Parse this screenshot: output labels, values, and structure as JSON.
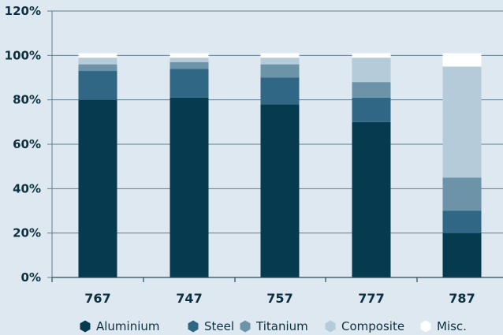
{
  "chart_data": {
    "type": "bar",
    "stacked": true,
    "categories": [
      "767",
      "747",
      "757",
      "777",
      "787"
    ],
    "series": [
      {
        "name": "Aluminium",
        "color": "#053a4f",
        "values": [
          80,
          81,
          78,
          70,
          20
        ]
      },
      {
        "name": "Steel",
        "color": "#2f6784",
        "values": [
          13,
          13,
          12,
          11,
          10
        ]
      },
      {
        "name": "Titanium",
        "color": "#6d93a8",
        "values": [
          3,
          3,
          6,
          7,
          15
        ]
      },
      {
        "name": "Composite",
        "color": "#b6cbda",
        "values": [
          3,
          2,
          3,
          11,
          50
        ]
      },
      {
        "name": "Misc.",
        "color": "#ffffff",
        "values": [
          2,
          2,
          2,
          2,
          6
        ]
      }
    ],
    "y_ticks": [
      "0%",
      "20%",
      "40%",
      "60%",
      "80%",
      "100%",
      "120%"
    ],
    "ylim": [
      0,
      120
    ],
    "legend_position": "bottom",
    "grid": true
  }
}
